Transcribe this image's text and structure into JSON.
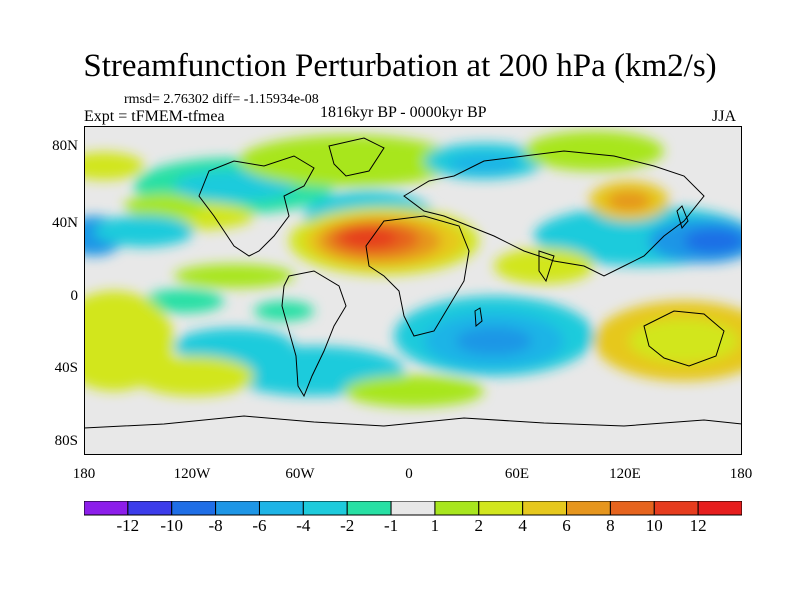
{
  "title": "Streamfunction Perturbation at 200 hPa (km2/s)",
  "stats": "rmsd= 2.76302 diff= -1.15934e-08",
  "expt": "Expt = tFMEM-tfmea",
  "period": "1816kyr BP - 0000kyr BP",
  "season": "JJA",
  "lat_labels": [
    "80N",
    "40N",
    "0",
    "40S",
    "80S"
  ],
  "lon_labels": [
    "180",
    "120W",
    "60W",
    "0",
    "60E",
    "120E",
    "180"
  ],
  "colorbar": {
    "labels": [
      "-12",
      "-10",
      "-8",
      "-6",
      "-4",
      "-2",
      "-1",
      "1",
      "2",
      "4",
      "6",
      "8",
      "10",
      "12"
    ],
    "colors": [
      "#8c1eea",
      "#3c3cea",
      "#1f6ee6",
      "#1e96e6",
      "#1eb4e6",
      "#1ecbdc",
      "#28e0a4",
      "#e8e8e8",
      "#a8e61e",
      "#d2e61e",
      "#e6c81e",
      "#e6961e",
      "#e6641e",
      "#e63c1e",
      "#e61e1e"
    ]
  },
  "colors": {
    "land_outline": "#000000",
    "background": "#e8e8e8"
  }
}
